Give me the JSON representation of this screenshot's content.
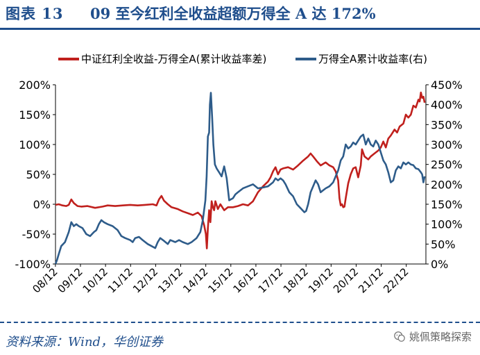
{
  "header": {
    "figure_no": "图表 13",
    "title": "09 至今红利全收益超额万得全 A 达 172%"
  },
  "source": "资料来源：Wind，华创证券",
  "watermark": "姚佩策略探索",
  "colors": {
    "series_red": "#c0201d",
    "series_blue": "#2e5c8a",
    "title": "#1f4e8c"
  },
  "chart_data": {
    "type": "line",
    "legend_position": "top",
    "grid": false,
    "x_labels": [
      "08/12",
      "09/12",
      "10/12",
      "11/12",
      "12/12",
      "13/12",
      "14/12",
      "15/12",
      "16/12",
      "17/12",
      "18/12",
      "19/12",
      "20/12",
      "21/12",
      "22/12"
    ],
    "x_range": [
      2008.92,
      2023.7
    ],
    "y_left": {
      "ticks": [
        "200%",
        "150%",
        "100%",
        "50%",
        "0%",
        "-50%",
        "-100%"
      ],
      "range": [
        -100,
        200
      ]
    },
    "y_right": {
      "ticks": [
        "450%",
        "400%",
        "350%",
        "300%",
        "250%",
        "200%",
        "150%",
        "100%",
        "50%",
        "0%"
      ],
      "range": [
        0,
        450
      ]
    },
    "series": [
      {
        "name": "中证红利全收益-万得全A(累计收益率差)",
        "axis": "left",
        "color": "#c0201d",
        "points": [
          [
            2008.92,
            -1
          ],
          [
            2009.05,
            0
          ],
          [
            2009.2,
            -2
          ],
          [
            2009.35,
            -3
          ],
          [
            2009.45,
            -1
          ],
          [
            2009.55,
            8
          ],
          [
            2009.65,
            2
          ],
          [
            2009.8,
            -3
          ],
          [
            2009.95,
            -4
          ],
          [
            2010.2,
            -3
          ],
          [
            2010.5,
            -6
          ],
          [
            2010.8,
            -4
          ],
          [
            2011.0,
            -2
          ],
          [
            2011.3,
            -3
          ],
          [
            2011.6,
            -2
          ],
          [
            2011.9,
            -1
          ],
          [
            2012.2,
            -2
          ],
          [
            2012.5,
            -1
          ],
          [
            2012.8,
            0
          ],
          [
            2012.95,
            -2
          ],
          [
            2013.05,
            8
          ],
          [
            2013.15,
            14
          ],
          [
            2013.25,
            6
          ],
          [
            2013.4,
            0
          ],
          [
            2013.55,
            -5
          ],
          [
            2013.8,
            -8
          ],
          [
            2014.0,
            -12
          ],
          [
            2014.2,
            -15
          ],
          [
            2014.4,
            -18
          ],
          [
            2014.6,
            -14
          ],
          [
            2014.75,
            -20
          ],
          [
            2014.85,
            -35
          ],
          [
            2014.92,
            -50
          ],
          [
            2014.96,
            -74
          ],
          [
            2015.0,
            -40
          ],
          [
            2015.05,
            -10
          ],
          [
            2015.1,
            -30
          ],
          [
            2015.15,
            5
          ],
          [
            2015.2,
            -5
          ],
          [
            2015.25,
            -10
          ],
          [
            2015.3,
            5
          ],
          [
            2015.4,
            -8
          ],
          [
            2015.5,
            0
          ],
          [
            2015.65,
            -10
          ],
          [
            2015.8,
            -5
          ],
          [
            2016.0,
            -5
          ],
          [
            2016.2,
            -3
          ],
          [
            2016.4,
            0
          ],
          [
            2016.6,
            -2
          ],
          [
            2016.8,
            5
          ],
          [
            2017.0,
            20
          ],
          [
            2017.2,
            30
          ],
          [
            2017.4,
            38
          ],
          [
            2017.5,
            45
          ],
          [
            2017.6,
            55
          ],
          [
            2017.7,
            62
          ],
          [
            2017.8,
            50
          ],
          [
            2017.9,
            58
          ],
          [
            2018.0,
            60
          ],
          [
            2018.2,
            62
          ],
          [
            2018.4,
            58
          ],
          [
            2018.6,
            65
          ],
          [
            2018.8,
            73
          ],
          [
            2019.0,
            80
          ],
          [
            2019.1,
            85
          ],
          [
            2019.2,
            80
          ],
          [
            2019.35,
            72
          ],
          [
            2019.5,
            65
          ],
          [
            2019.7,
            70
          ],
          [
            2019.85,
            65
          ],
          [
            2020.0,
            62
          ],
          [
            2020.1,
            55
          ],
          [
            2020.2,
            40
          ],
          [
            2020.25,
            10
          ],
          [
            2020.3,
            -2
          ],
          [
            2020.35,
            0
          ],
          [
            2020.4,
            -5
          ],
          [
            2020.45,
            -4
          ],
          [
            2020.5,
            10
          ],
          [
            2020.6,
            35
          ],
          [
            2020.7,
            50
          ],
          [
            2020.8,
            60
          ],
          [
            2020.9,
            62
          ],
          [
            2021.0,
            45
          ],
          [
            2021.1,
            65
          ],
          [
            2021.15,
            92
          ],
          [
            2021.25,
            80
          ],
          [
            2021.4,
            75
          ],
          [
            2021.5,
            80
          ],
          [
            2021.65,
            85
          ],
          [
            2021.8,
            90
          ],
          [
            2021.9,
            95
          ],
          [
            2022.0,
            105
          ],
          [
            2022.1,
            95
          ],
          [
            2022.2,
            110
          ],
          [
            2022.3,
            115
          ],
          [
            2022.45,
            125
          ],
          [
            2022.55,
            120
          ],
          [
            2022.65,
            130
          ],
          [
            2022.8,
            135
          ],
          [
            2022.9,
            150
          ],
          [
            2023.0,
            145
          ],
          [
            2023.1,
            150
          ],
          [
            2023.2,
            165
          ],
          [
            2023.3,
            162
          ],
          [
            2023.4,
            175
          ],
          [
            2023.45,
            172
          ],
          [
            2023.5,
            187
          ],
          [
            2023.55,
            178
          ],
          [
            2023.6,
            180
          ],
          [
            2023.65,
            170
          ]
        ]
      },
      {
        "name": "万得全A累计收益率(右)",
        "axis": "right",
        "color": "#2e5c8a",
        "points": [
          [
            2008.92,
            0
          ],
          [
            2008.98,
            10
          ],
          [
            2009.05,
            25
          ],
          [
            2009.15,
            45
          ],
          [
            2009.3,
            55
          ],
          [
            2009.45,
            80
          ],
          [
            2009.55,
            105
          ],
          [
            2009.65,
            95
          ],
          [
            2009.75,
            100
          ],
          [
            2009.85,
            95
          ],
          [
            2010.0,
            90
          ],
          [
            2010.15,
            75
          ],
          [
            2010.3,
            70
          ],
          [
            2010.45,
            80
          ],
          [
            2010.55,
            85
          ],
          [
            2010.65,
            100
          ],
          [
            2010.75,
            110
          ],
          [
            2010.85,
            105
          ],
          [
            2011.0,
            100
          ],
          [
            2011.2,
            95
          ],
          [
            2011.4,
            85
          ],
          [
            2011.55,
            70
          ],
          [
            2011.7,
            65
          ],
          [
            2011.9,
            60
          ],
          [
            2012.0,
            55
          ],
          [
            2012.1,
            65
          ],
          [
            2012.25,
            68
          ],
          [
            2012.4,
            60
          ],
          [
            2012.6,
            50
          ],
          [
            2012.75,
            45
          ],
          [
            2012.9,
            40
          ],
          [
            2013.0,
            55
          ],
          [
            2013.1,
            65
          ],
          [
            2013.25,
            58
          ],
          [
            2013.4,
            50
          ],
          [
            2013.5,
            60
          ],
          [
            2013.7,
            55
          ],
          [
            2013.85,
            60
          ],
          [
            2014.0,
            55
          ],
          [
            2014.2,
            50
          ],
          [
            2014.35,
            55
          ],
          [
            2014.55,
            65
          ],
          [
            2014.7,
            80
          ],
          [
            2014.8,
            110
          ],
          [
            2014.9,
            160
          ],
          [
            2014.95,
            220
          ],
          [
            2015.0,
            320
          ],
          [
            2015.05,
            330
          ],
          [
            2015.08,
            400
          ],
          [
            2015.12,
            430
          ],
          [
            2015.17,
            370
          ],
          [
            2015.22,
            300
          ],
          [
            2015.28,
            250
          ],
          [
            2015.35,
            240
          ],
          [
            2015.45,
            230
          ],
          [
            2015.55,
            220
          ],
          [
            2015.65,
            245
          ],
          [
            2015.75,
            215
          ],
          [
            2015.85,
            160
          ],
          [
            2016.0,
            165
          ],
          [
            2016.1,
            175
          ],
          [
            2016.2,
            180
          ],
          [
            2016.4,
            190
          ],
          [
            2016.6,
            195
          ],
          [
            2016.8,
            200
          ],
          [
            2017.0,
            190
          ],
          [
            2017.2,
            192
          ],
          [
            2017.4,
            195
          ],
          [
            2017.6,
            205
          ],
          [
            2017.7,
            215
          ],
          [
            2017.8,
            210
          ],
          [
            2017.9,
            215
          ],
          [
            2018.0,
            210
          ],
          [
            2018.1,
            200
          ],
          [
            2018.25,
            180
          ],
          [
            2018.4,
            170
          ],
          [
            2018.55,
            150
          ],
          [
            2018.7,
            140
          ],
          [
            2018.85,
            130
          ],
          [
            2018.92,
            133
          ],
          [
            2019.0,
            150
          ],
          [
            2019.1,
            180
          ],
          [
            2019.2,
            195
          ],
          [
            2019.3,
            210
          ],
          [
            2019.4,
            200
          ],
          [
            2019.5,
            180
          ],
          [
            2019.6,
            185
          ],
          [
            2019.7,
            190
          ],
          [
            2019.85,
            195
          ],
          [
            2020.0,
            205
          ],
          [
            2020.1,
            220
          ],
          [
            2020.2,
            235
          ],
          [
            2020.3,
            260
          ],
          [
            2020.4,
            270
          ],
          [
            2020.5,
            300
          ],
          [
            2020.6,
            290
          ],
          [
            2020.7,
            295
          ],
          [
            2020.8,
            305
          ],
          [
            2020.9,
            300
          ],
          [
            2021.0,
            310
          ],
          [
            2021.1,
            320
          ],
          [
            2021.2,
            325
          ],
          [
            2021.3,
            300
          ],
          [
            2021.4,
            315
          ],
          [
            2021.5,
            300
          ],
          [
            2021.6,
            295
          ],
          [
            2021.7,
            310
          ],
          [
            2021.8,
            300
          ],
          [
            2021.9,
            280
          ],
          [
            2022.0,
            260
          ],
          [
            2022.1,
            250
          ],
          [
            2022.2,
            230
          ],
          [
            2022.3,
            205
          ],
          [
            2022.4,
            210
          ],
          [
            2022.5,
            235
          ],
          [
            2022.6,
            245
          ],
          [
            2022.7,
            240
          ],
          [
            2022.8,
            255
          ],
          [
            2022.9,
            250
          ],
          [
            2023.0,
            255
          ],
          [
            2023.1,
            250
          ],
          [
            2023.2,
            248
          ],
          [
            2023.3,
            240
          ],
          [
            2023.4,
            238
          ],
          [
            2023.5,
            230
          ],
          [
            2023.55,
            225
          ],
          [
            2023.6,
            205
          ],
          [
            2023.65,
            220
          ]
        ]
      }
    ]
  }
}
